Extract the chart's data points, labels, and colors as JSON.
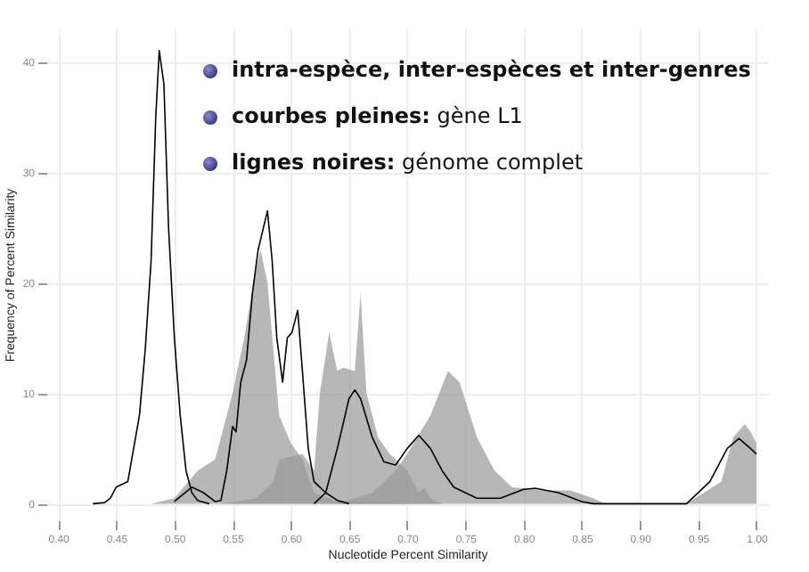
{
  "chart_data": {
    "type": "area",
    "xlabel": "Nucleotide Percent Similarity",
    "ylabel": "Frequency of Percent Similarity",
    "annotations": [
      "intra-espèce, inter-espèces et inter-genres",
      "courbes pleines: gène L1",
      "lignes noires: génome complet"
    ],
    "xlim": [
      0.39,
      1.01
    ],
    "ylim": [
      -1.5,
      43
    ],
    "xticks": [
      {
        "value": 0.4,
        "label": "0.40"
      },
      {
        "value": 0.45,
        "label": "0.45"
      },
      {
        "value": 0.5,
        "label": "0.50"
      },
      {
        "value": 0.55,
        "label": "0.55"
      },
      {
        "value": 0.6,
        "label": "0.60"
      },
      {
        "value": 0.65,
        "label": "0.65"
      },
      {
        "value": 0.7,
        "label": "0.70"
      },
      {
        "value": 0.75,
        "label": "0.75"
      },
      {
        "value": 0.8,
        "label": "0.80"
      },
      {
        "value": 0.85,
        "label": "0.85"
      },
      {
        "value": 0.9,
        "label": "0.90"
      },
      {
        "value": 0.95,
        "label": "0.95"
      },
      {
        "value": 1.0,
        "label": "1.00"
      }
    ],
    "yticks": [
      0,
      10,
      20,
      30,
      40
    ],
    "grid": true,
    "series": [
      {
        "color": "#999999",
        "x": [
          0.48,
          0.5,
          0.52,
          0.535,
          0.55,
          0.56,
          0.568,
          0.574,
          0.58,
          0.59,
          0.6,
          0.61,
          0.62,
          0.637,
          0.66,
          0.72
        ],
        "values": [
          0,
          0.5,
          3,
          4,
          10,
          15,
          20,
          23,
          20,
          8,
          5.5,
          4,
          1,
          0.3,
          0.2,
          0
        ]
      },
      {
        "color": "#999999",
        "x": [
          0.54,
          0.57,
          0.585,
          0.59,
          0.61,
          0.62,
          0.625,
          0.633,
          0.64,
          0.645,
          0.655,
          0.66,
          0.665,
          0.675,
          0.685,
          0.69,
          0.7,
          0.71,
          0.715,
          0.72,
          0.73
        ],
        "values": [
          0,
          0.5,
          2,
          4,
          4.5,
          3,
          10,
          15.5,
          12,
          12.3,
          12,
          19,
          10,
          6,
          4.5,
          4,
          3,
          1,
          1.5,
          0.5,
          0
        ]
      },
      {
        "color": "#999999",
        "x": [
          0.64,
          0.67,
          0.69,
          0.7,
          0.72,
          0.735,
          0.745,
          0.76,
          0.775,
          0.79,
          0.82,
          0.84,
          0.86,
          0.87,
          0.94,
          0.97,
          0.98,
          0.99,
          0.995,
          1.0
        ],
        "values": [
          0,
          1,
          3,
          4.5,
          8,
          12,
          11,
          6,
          3,
          1.5,
          1.2,
          1.2,
          0.5,
          0,
          0,
          2,
          6,
          7.2,
          6.5,
          5.5
        ]
      },
      {
        "type": "line",
        "color": "#000000",
        "x": [
          0.43,
          0.44,
          0.445,
          0.45,
          0.46,
          0.47,
          0.475,
          0.48,
          0.484,
          0.487,
          0.491,
          0.495,
          0.5,
          0.505,
          0.51,
          0.515,
          0.52,
          0.53
        ],
        "values": [
          0,
          0.1,
          0.5,
          1.5,
          2,
          8,
          14,
          22,
          35,
          41,
          38,
          25,
          15,
          8,
          3,
          1,
          0.3,
          0
        ]
      },
      {
        "type": "line",
        "color": "#000000",
        "x": [
          0.5,
          0.515,
          0.525,
          0.535,
          0.54,
          0.545,
          0.55,
          0.553,
          0.557,
          0.562,
          0.567,
          0.572,
          0.58,
          0.584,
          0.588,
          0.593,
          0.597,
          0.601,
          0.606,
          0.61,
          0.615,
          0.62,
          0.63,
          0.64,
          0.65
        ],
        "values": [
          0.2,
          1.5,
          1,
          0.2,
          0.3,
          3,
          7,
          6.5,
          11,
          13,
          19,
          23,
          26.5,
          22,
          15,
          11,
          15,
          15.5,
          17.5,
          12,
          5,
          2,
          1,
          0.3,
          0
        ]
      },
      {
        "type": "line",
        "color": "#000000",
        "x": [
          0.62,
          0.63,
          0.64,
          0.65,
          0.655,
          0.66,
          0.67,
          0.68,
          0.69,
          0.7,
          0.71,
          0.72,
          0.73,
          0.74,
          0.76,
          0.78,
          0.8,
          0.81,
          0.83,
          0.85,
          0.86,
          0.94,
          0.96,
          0.975,
          0.985,
          0.995,
          1.0
        ],
        "values": [
          0,
          1,
          5,
          9.5,
          10.3,
          9.5,
          6,
          3.8,
          3.5,
          5,
          6.2,
          5,
          3,
          1.5,
          0.5,
          0.5,
          1.3,
          1.4,
          1,
          0.2,
          0,
          0,
          2,
          5,
          5.9,
          5,
          4.5
        ]
      }
    ]
  }
}
